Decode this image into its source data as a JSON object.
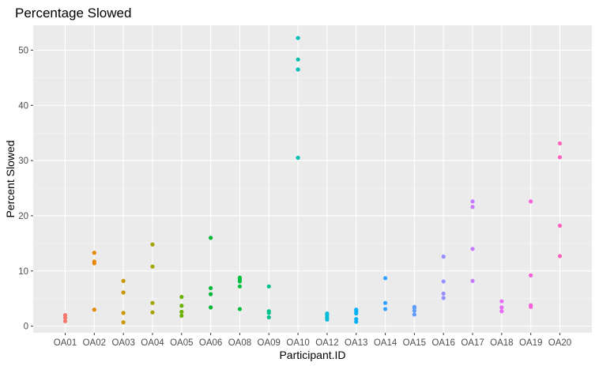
{
  "chart_data": {
    "type": "scatter",
    "title": "Percentage Slowed",
    "xlabel": "Participant.ID",
    "ylabel": "Percent Slowed",
    "ylim": [
      -1.2,
      54.5
    ],
    "yticks": [
      0,
      10,
      20,
      30,
      40,
      50
    ],
    "grid": true,
    "legend": "none",
    "categories": [
      "OA01",
      "OA02",
      "OA03",
      "OA04",
      "OA05",
      "OA06",
      "OA08",
      "OA09",
      "OA10",
      "OA12",
      "OA13",
      "OA14",
      "OA15",
      "OA16",
      "OA17",
      "OA18",
      "OA19",
      "OA20"
    ],
    "series": [
      {
        "category": "OA01",
        "color": "#F8766D",
        "values": [
          0.9,
          1.5,
          2.0
        ]
      },
      {
        "category": "OA02",
        "color": "#E58700",
        "values": [
          3.0,
          11.4,
          11.7,
          13.3
        ]
      },
      {
        "category": "OA03",
        "color": "#C99800",
        "values": [
          0.7,
          2.4,
          6.1,
          8.2
        ]
      },
      {
        "category": "OA04",
        "color": "#A3A500",
        "values": [
          2.5,
          4.2,
          10.8,
          14.8
        ]
      },
      {
        "category": "OA05",
        "color": "#6BB100",
        "values": [
          1.9,
          2.6,
          3.7,
          5.3
        ]
      },
      {
        "category": "OA06",
        "color": "#00BA38",
        "values": [
          3.4,
          5.8,
          6.9,
          16.0
        ]
      },
      {
        "category": "OA08",
        "color": "#00BF40",
        "values": [
          3.1,
          7.2,
          8.1,
          8.5,
          8.8
        ]
      },
      {
        "category": "OA09",
        "color": "#00C08B",
        "values": [
          1.6,
          2.4,
          2.7,
          7.2
        ]
      },
      {
        "category": "OA10",
        "color": "#00C0AF",
        "values": [
          30.5,
          46.5,
          48.3,
          52.2
        ]
      },
      {
        "category": "OA12",
        "color": "#00BCD8",
        "values": [
          1.2,
          1.6,
          2.0,
          2.3
        ]
      },
      {
        "category": "OA13",
        "color": "#00B0F6",
        "values": [
          0.8,
          1.3,
          2.3,
          2.7,
          3.0
        ]
      },
      {
        "category": "OA14",
        "color": "#35A2FF",
        "values": [
          3.1,
          4.2,
          8.7
        ]
      },
      {
        "category": "OA15",
        "color": "#619CFF",
        "values": [
          2.1,
          2.8,
          3.3,
          3.5
        ]
      },
      {
        "category": "OA16",
        "color": "#9590FF",
        "values": [
          5.1,
          5.9,
          8.1,
          12.6
        ]
      },
      {
        "category": "OA17",
        "color": "#C77CFF",
        "values": [
          8.2,
          14.0,
          21.6,
          22.6
        ]
      },
      {
        "category": "OA18",
        "color": "#E76BF3",
        "values": [
          2.7,
          3.4,
          4.5
        ]
      },
      {
        "category": "OA19",
        "color": "#FA62DB",
        "values": [
          3.5,
          3.8,
          9.2,
          22.6
        ]
      },
      {
        "category": "OA20",
        "color": "#FF62BC",
        "values": [
          12.7,
          18.2,
          30.6,
          33.1
        ]
      }
    ],
    "colors": {
      "panel_background": "#EBEBEB",
      "grid": "#FFFFFF",
      "tick_text": "#4D4D4D"
    }
  }
}
